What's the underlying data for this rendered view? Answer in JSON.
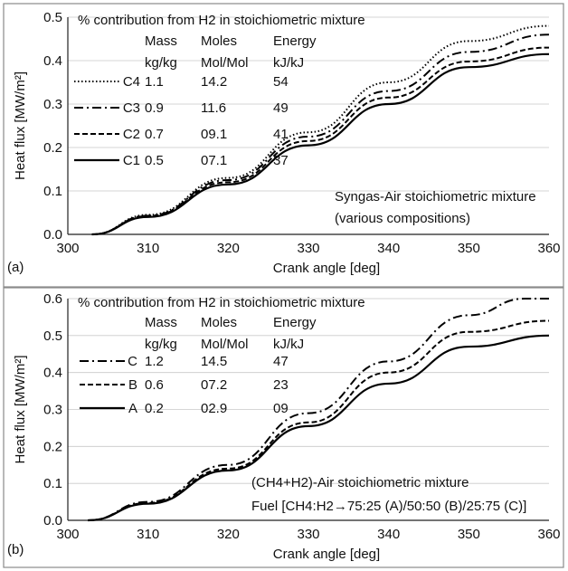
{
  "chart_data": [
    {
      "type": "line",
      "panel_label": "(a)",
      "xlabel": "Crank angle [deg]",
      "ylabel": "Heat flux [MW/m²]",
      "xlim": [
        300,
        360
      ],
      "ylim": [
        0,
        0.5
      ],
      "xticks": [
        "300",
        "310",
        "320",
        "330",
        "340",
        "350",
        "360"
      ],
      "yticks": [
        "0.0",
        "0.1",
        "0.2",
        "0.3",
        "0.4",
        "0.5"
      ],
      "grid": "horizontal",
      "legend_title": "% contribution from H2 in stoichiometric mixture",
      "legend_headers": [
        [
          "Mass",
          "kg/kg"
        ],
        [
          "Moles",
          "Mol/Mol"
        ],
        [
          "Energy",
          "kJ/kJ"
        ]
      ],
      "annotation": [
        "Syngas-Air stoichiometric mixture",
        "(various compositions)"
      ],
      "series": [
        {
          "name": "C4",
          "dash": "dotted",
          "mass": "1.1",
          "moles": "14.2",
          "energy": "54",
          "x": [
            303,
            310,
            320,
            330,
            340,
            350,
            360
          ],
          "y": [
            0.0,
            0.045,
            0.13,
            0.235,
            0.35,
            0.445,
            0.48
          ]
        },
        {
          "name": "C3",
          "dash": "dashdot",
          "mass": "0.9",
          "moles": "11.6",
          "energy": "49",
          "x": [
            303,
            310,
            320,
            330,
            340,
            350,
            360
          ],
          "y": [
            0.0,
            0.043,
            0.125,
            0.225,
            0.33,
            0.42,
            0.46
          ]
        },
        {
          "name": "C2",
          "dash": "dashed",
          "mass": "0.7",
          "moles": "09.1",
          "energy": "41",
          "x": [
            303,
            310,
            320,
            330,
            340,
            350,
            360
          ],
          "y": [
            0.0,
            0.042,
            0.12,
            0.215,
            0.315,
            0.398,
            0.43
          ]
        },
        {
          "name": "C1",
          "dash": "solid",
          "mass": "0.5",
          "moles": "07.1",
          "energy": "37",
          "x": [
            303,
            310,
            320,
            330,
            340,
            350,
            360
          ],
          "y": [
            0.0,
            0.04,
            0.115,
            0.205,
            0.3,
            0.385,
            0.415
          ]
        }
      ]
    },
    {
      "type": "line",
      "panel_label": "(b)",
      "xlabel": "Crank angle [deg]",
      "ylabel": "Heat flux [MW/m²]",
      "xlim": [
        300,
        360
      ],
      "ylim": [
        0,
        0.6
      ],
      "xticks": [
        "300",
        "310",
        "320",
        "330",
        "340",
        "350",
        "360"
      ],
      "yticks": [
        "0.0",
        "0.1",
        "0.2",
        "0.3",
        "0.4",
        "0.5",
        "0.6"
      ],
      "grid": "horizontal",
      "legend_title": "% contribution from H2 in stoichiometric mixture",
      "legend_headers": [
        [
          "Mass",
          "kg/kg"
        ],
        [
          "Moles",
          "Mol/Mol"
        ],
        [
          "Energy",
          "kJ/kJ"
        ]
      ],
      "annotation": [
        "(CH4+H2)-Air stoichiometric mixture",
        "Fuel [CH4:H2→75:25 (A)/50:50 (B)/25:75 (C)]"
      ],
      "series": [
        {
          "name": "C",
          "dash": "dashdot",
          "mass": "1.2",
          "moles": "14.5",
          "energy": "47",
          "x": [
            302.5,
            310,
            320,
            330,
            340,
            350,
            357,
            360
          ],
          "y": [
            0.0,
            0.05,
            0.15,
            0.29,
            0.43,
            0.555,
            0.6,
            0.6
          ]
        },
        {
          "name": "B",
          "dash": "dashed",
          "mass": "0.6",
          "moles": "07.2",
          "energy": "23",
          "x": [
            302.5,
            310,
            320,
            330,
            340,
            350,
            360
          ],
          "y": [
            0.0,
            0.047,
            0.14,
            0.265,
            0.4,
            0.51,
            0.54
          ]
        },
        {
          "name": "A",
          "dash": "solid",
          "mass": "0.2",
          "moles": "02.9",
          "energy": "09",
          "x": [
            302.5,
            310,
            320,
            330,
            340,
            350,
            360
          ],
          "y": [
            0.0,
            0.045,
            0.135,
            0.255,
            0.37,
            0.47,
            0.5
          ]
        }
      ]
    }
  ]
}
